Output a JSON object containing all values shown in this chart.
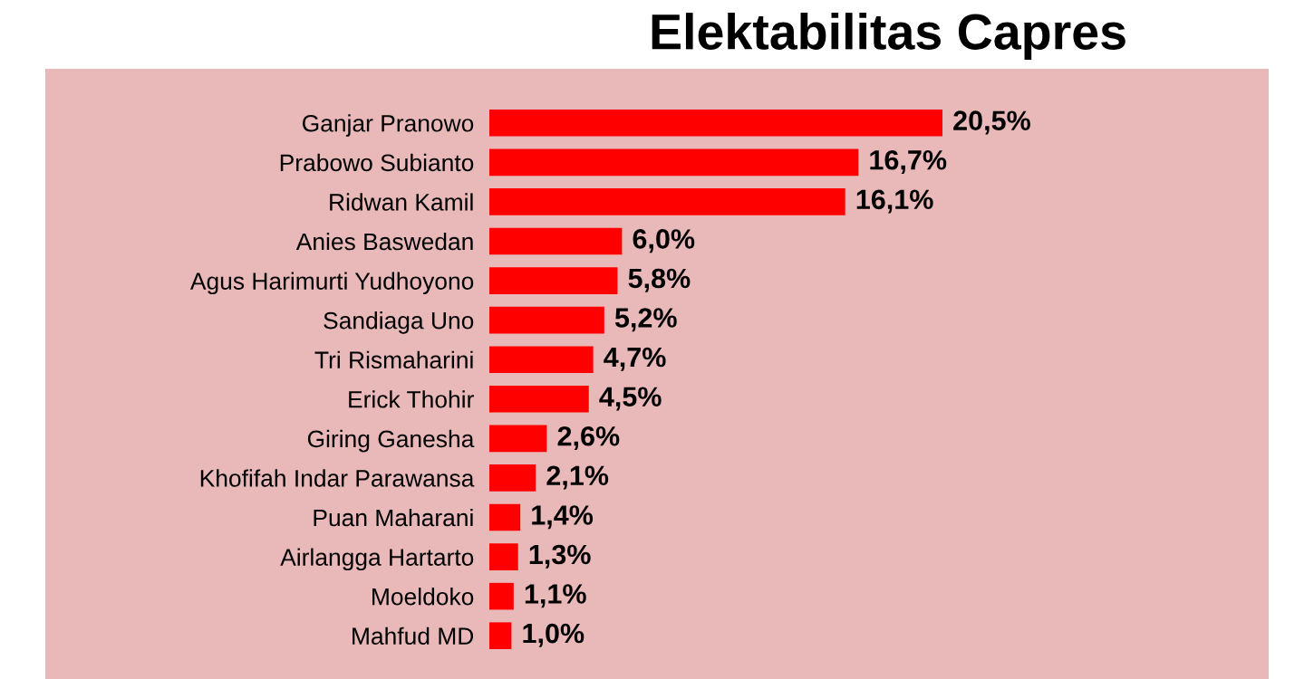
{
  "chart_data": {
    "type": "bar",
    "orientation": "horizontal",
    "title": "Elektabilitas Capres",
    "categories": [
      "Ganjar Pranowo",
      "Prabowo Subianto",
      "Ridwan Kamil",
      "Anies Baswedan",
      "Agus Harimurti Yudhoyono",
      "Sandiaga Uno",
      "Tri Rismaharini",
      "Erick Thohir",
      "Giring Ganesha",
      "Khofifah Indar Parawansa",
      "Puan Maharani",
      "Airlangga Hartarto",
      "Moeldoko",
      "Mahfud MD"
    ],
    "values": [
      20.5,
      16.7,
      16.1,
      6.0,
      5.8,
      5.2,
      4.7,
      4.5,
      2.6,
      2.1,
      1.4,
      1.3,
      1.1,
      1.0
    ],
    "value_labels": [
      "20,5%",
      "16,7%",
      "16,1%",
      "6,0%",
      "5,8%",
      "5,2%",
      "4,7%",
      "4,5%",
      "2,6%",
      "2,1%",
      "1,4%",
      "1,3%",
      "1,1%",
      "1,0%"
    ],
    "color": "#ff0000"
  }
}
